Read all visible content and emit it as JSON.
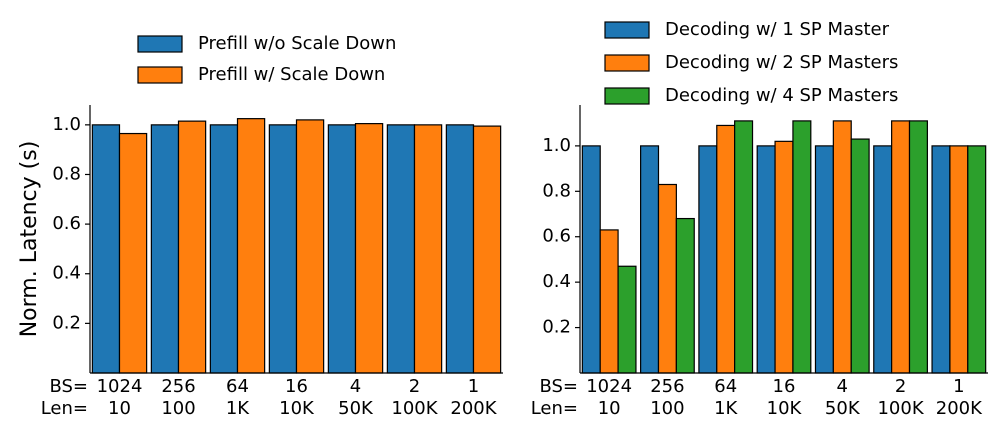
{
  "chart_data": [
    {
      "type": "bar",
      "y_label": "Norm. Latency (s)",
      "categories": [
        "1024",
        "256",
        "64",
        "16",
        "4",
        "2",
        "1"
      ],
      "category_rows": [
        {
          "row_label": "BS=",
          "labels": [
            "1024",
            "256",
            "64",
            "16",
            "4",
            "2",
            "1"
          ]
        },
        {
          "row_label": "Len=",
          "labels": [
            "10",
            "100",
            "1K",
            "10K",
            "50K",
            "100K",
            "200K"
          ]
        }
      ],
      "series": [
        {
          "name": "Prefill w/o Scale Down",
          "color": "#1f77b4",
          "values": [
            1.0,
            1.0,
            1.0,
            1.0,
            1.0,
            1.0,
            1.0
          ]
        },
        {
          "name": "Prefill w/ Scale Down",
          "color": "#ff7f0e",
          "values": [
            0.965,
            1.015,
            1.025,
            1.02,
            1.005,
            1.0,
            0.995
          ]
        }
      ],
      "ylim": [
        0,
        1.08
      ],
      "yticks": [
        0.2,
        0.4,
        0.6,
        0.8,
        {
          "value": 1,
          "label": "1.0"
        }
      ],
      "legend": "upper center"
    },
    {
      "type": "bar",
      "categories": [
        "1024",
        "256",
        "64",
        "16",
        "4",
        "2",
        "1"
      ],
      "category_rows": [
        {
          "row_label": "BS=",
          "labels": [
            "1024",
            "256",
            "64",
            "16",
            "4",
            "2",
            "1"
          ]
        },
        {
          "row_label": "Len=",
          "labels": [
            "10",
            "100",
            "1K",
            "10K",
            "50K",
            "100K",
            "200K"
          ]
        }
      ],
      "series": [
        {
          "name": "Decoding w/ 1 SP Master",
          "color": "#1f77b4",
          "values": [
            1.0,
            1.0,
            1.0,
            1.0,
            1.0,
            1.0,
            1.0
          ]
        },
        {
          "name": "Decoding w/ 2 SP Masters",
          "color": "#ff7f0e",
          "values": [
            0.63,
            0.83,
            1.09,
            1.02,
            1.11,
            1.11,
            1.0
          ]
        },
        {
          "name": "Decoding w/ 4 SP Masters",
          "color": "#2ca02c",
          "values": [
            0.47,
            0.68,
            1.11,
            1.11,
            1.03,
            1.11,
            1.0
          ]
        }
      ],
      "ylim": [
        0,
        1.18
      ],
      "yticks": [
        0.2,
        0.4,
        0.6,
        0.8,
        {
          "value": 1,
          "label": "1.0"
        }
      ],
      "legend": "upper center"
    }
  ]
}
